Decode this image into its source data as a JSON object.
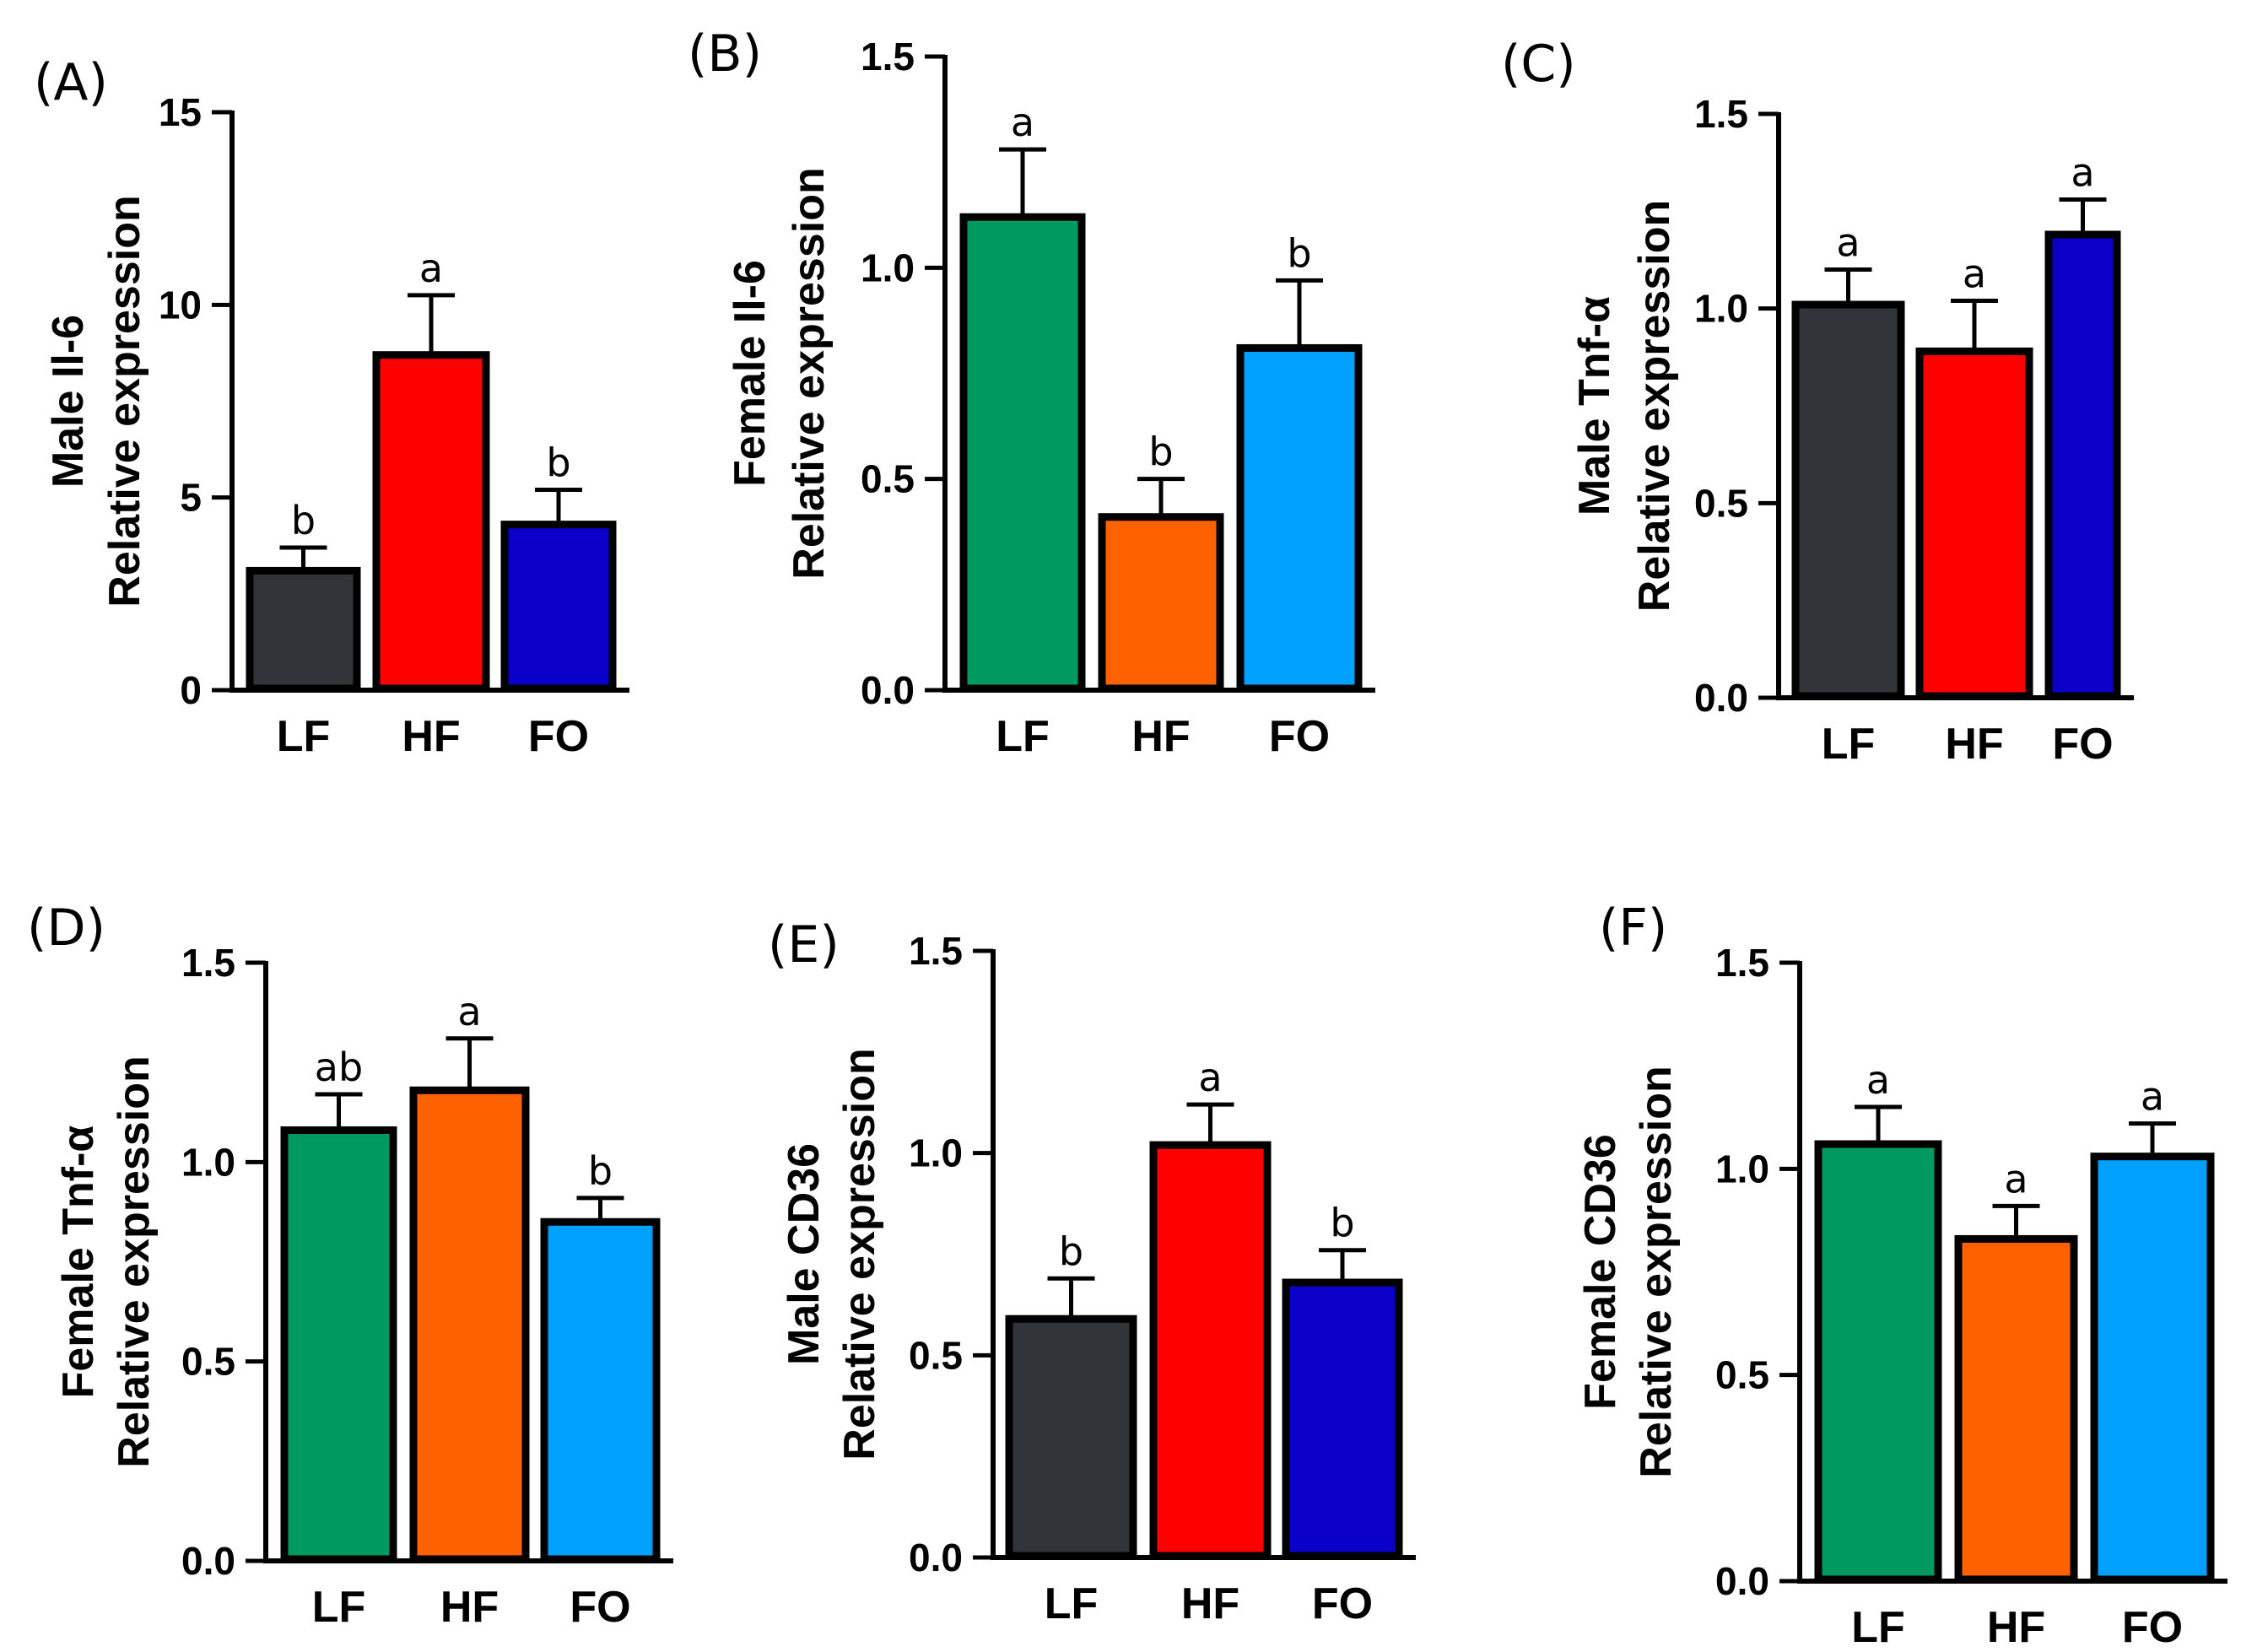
{
  "chart_data": [
    {
      "panel": "(A)",
      "type": "bar",
      "ylabel": [
        "Male Il-6",
        "Relative expression"
      ],
      "ylim": [
        0,
        15
      ],
      "yticks": [
        0,
        5,
        10,
        15
      ],
      "yticklabels": [
        "0",
        "5",
        "10",
        "15"
      ],
      "categories": [
        "LF",
        "HF",
        "FO"
      ],
      "values": [
        3.1,
        8.7,
        4.3
      ],
      "errors": [
        0.6,
        1.55,
        0.9
      ],
      "significance": [
        "b",
        "a",
        "b"
      ],
      "colors": [
        "#313539",
        "#fe0000",
        "#0a00c9"
      ]
    },
    {
      "panel": "(B)",
      "type": "bar",
      "ylabel": [
        "Female Il-6",
        "Relative expression"
      ],
      "ylim": [
        0,
        1.5
      ],
      "yticks": [
        0,
        0.5,
        1.0,
        1.5
      ],
      "yticklabels": [
        "0.0",
        "0.5",
        "1.0",
        "1.5"
      ],
      "categories": [
        "LF",
        "HF",
        "FO"
      ],
      "values": [
        1.12,
        0.41,
        0.81
      ],
      "errors": [
        0.16,
        0.09,
        0.16
      ],
      "significance": [
        "a",
        "b",
        "b"
      ],
      "colors": [
        "#009a60",
        "#fe6100",
        "#00a0fe"
      ]
    },
    {
      "panel": "(C)",
      "type": "bar",
      "ylabel": [
        "Male Tnf-α",
        "Relative expression"
      ],
      "ylim": [
        0,
        1.5
      ],
      "yticks": [
        0,
        0.5,
        1.0,
        1.5
      ],
      "yticklabels": [
        "0.0",
        "0.5",
        "1.0",
        "1.5"
      ],
      "categories": [
        "LF",
        "HF",
        "FO"
      ],
      "values": [
        1.01,
        0.89,
        1.19
      ],
      "errors": [
        0.09,
        0.13,
        0.09
      ],
      "significance": [
        "a",
        "a",
        "a"
      ],
      "colors": [
        "#313539",
        "#fe0000",
        "#0a00c9"
      ]
    },
    {
      "panel": "(D)",
      "type": "bar",
      "ylabel": [
        "Female Tnf-α",
        "Relative expression"
      ],
      "ylim": [
        0,
        1.5
      ],
      "yticks": [
        0,
        0.5,
        1.0,
        1.5
      ],
      "yticklabels": [
        "0.0",
        "0.5",
        "1.0",
        "1.5"
      ],
      "categories": [
        "LF",
        "HF",
        "FO"
      ],
      "values": [
        1.08,
        1.18,
        0.85
      ],
      "errors": [
        0.09,
        0.13,
        0.06
      ],
      "significance": [
        "ab",
        "a",
        "b"
      ],
      "colors": [
        "#009a60",
        "#fe6100",
        "#00a0fe"
      ]
    },
    {
      "panel": "(E)",
      "type": "bar",
      "ylabel": [
        "Male CD36",
        "Relative expression"
      ],
      "ylim": [
        0,
        1.5
      ],
      "yticks": [
        0,
        0.5,
        1.0,
        1.5
      ],
      "yticklabels": [
        "0.0",
        "0.5",
        "1.0",
        "1.5"
      ],
      "categories": [
        "LF",
        "HF",
        "FO"
      ],
      "values": [
        0.59,
        1.02,
        0.68
      ],
      "errors": [
        0.1,
        0.1,
        0.08
      ],
      "significance": [
        "b",
        "a",
        "b"
      ],
      "colors": [
        "#313539",
        "#fe0000",
        "#0a00c9"
      ]
    },
    {
      "panel": "(F)",
      "type": "bar",
      "ylabel": [
        "Female CD36",
        "Relative expression"
      ],
      "ylim": [
        0,
        1.5
      ],
      "yticks": [
        0,
        0.5,
        1.0,
        1.5
      ],
      "yticklabels": [
        "0.0",
        "0.5",
        "1.0",
        "1.5"
      ],
      "categories": [
        "LF",
        "HF",
        "FO"
      ],
      "values": [
        1.06,
        0.83,
        1.03
      ],
      "errors": [
        0.09,
        0.08,
        0.08
      ],
      "significance": [
        "a",
        "a",
        "a"
      ],
      "colors": [
        "#009a60",
        "#fe6100",
        "#00a0fe"
      ]
    }
  ]
}
